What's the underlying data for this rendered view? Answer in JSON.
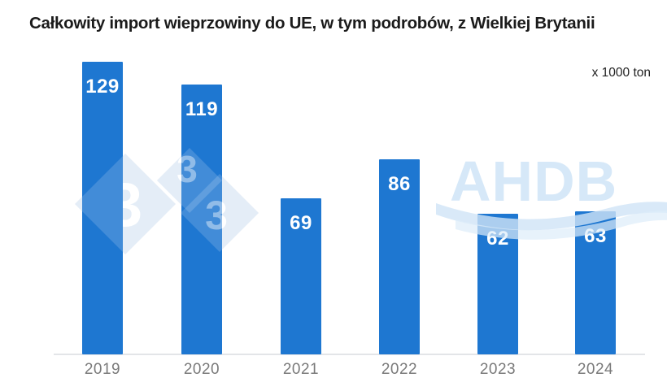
{
  "header": {
    "title": "Całkowity import wieprzowiny do UE, w tym podrobów, z Wielkiej Brytanii",
    "unit_label": "x 1000 ton"
  },
  "chart_data": {
    "type": "bar",
    "categories": [
      "2019",
      "2020",
      "2021",
      "2022",
      "2023",
      "2024"
    ],
    "values": [
      129,
      119,
      69,
      86,
      62,
      63
    ],
    "title": "Całkowity import wieprzowiny do UE, w tym podrobów, z Wielkiej Brytanii",
    "xlabel": "",
    "ylabel": "x 1000 ton",
    "ylim": [
      0,
      135
    ],
    "grid": "off",
    "legend": "none",
    "value_labels": "inside-top, white bold",
    "bar_color": "#1e77d1",
    "value_label_color": "#ffffff",
    "x_axis_label_color": "#7a7a7a",
    "axis_line_color": "#e3e5e8"
  },
  "watermarks": {
    "portal_digit": "3",
    "ahdb_label": "AHDB",
    "diamond_color": "#dfeaf6",
    "ahdb_color": "#d6e8f8"
  }
}
